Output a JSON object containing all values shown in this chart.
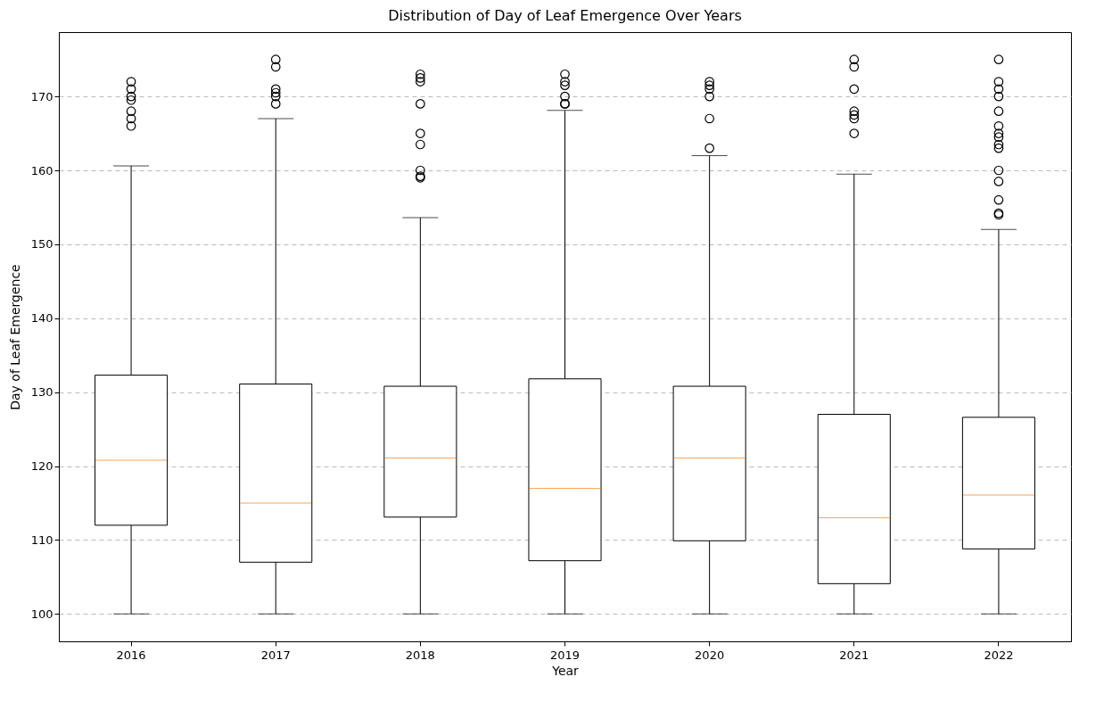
{
  "chart_data": {
    "type": "box",
    "title": "Distribution of Day of Leaf Emergence Over Years",
    "xlabel": "Year",
    "ylabel": "Day of Leaf Emergence",
    "categories": [
      "2016",
      "2017",
      "2018",
      "2019",
      "2020",
      "2021",
      "2022"
    ],
    "boxes": [
      {
        "low": 100,
        "q1": 112,
        "median": 120.8,
        "q3": 132.3,
        "high": 160.6,
        "outliers": [
          172,
          171,
          170,
          169.5,
          168,
          167,
          166
        ]
      },
      {
        "low": 100,
        "q1": 107,
        "median": 115,
        "q3": 131.1,
        "high": 167,
        "outliers": [
          175,
          174,
          171,
          170.5,
          170,
          169
        ]
      },
      {
        "low": 100,
        "q1": 113.1,
        "median": 121.1,
        "q3": 130.8,
        "high": 153.6,
        "outliers": [
          173,
          172.5,
          172,
          169,
          165,
          163.5,
          160,
          159.2,
          159
        ]
      },
      {
        "low": 100,
        "q1": 107.2,
        "median": 117,
        "q3": 131.8,
        "high": 168.1,
        "outliers": [
          173,
          172,
          171.5,
          170,
          169,
          169
        ]
      },
      {
        "low": 100,
        "q1": 109.9,
        "median": 121.1,
        "q3": 130.8,
        "high": 162,
        "outliers": [
          172,
          171.5,
          171,
          170,
          167,
          163
        ]
      },
      {
        "low": 100,
        "q1": 104.1,
        "median": 113,
        "q3": 127,
        "high": 159.5,
        "outliers": [
          175,
          174,
          171,
          168,
          167.5,
          167,
          165
        ]
      },
      {
        "low": 100,
        "q1": 108.8,
        "median": 116.1,
        "q3": 126.6,
        "high": 152,
        "outliers": [
          175,
          172,
          171,
          170,
          168,
          166,
          165,
          164.5,
          163.5,
          163,
          160,
          158.5,
          156,
          154.2,
          154
        ]
      }
    ],
    "ylim": [
      96.3,
      178.7
    ],
    "yticks": [
      100,
      110,
      120,
      130,
      140,
      150,
      160,
      170
    ],
    "grid": "y"
  }
}
